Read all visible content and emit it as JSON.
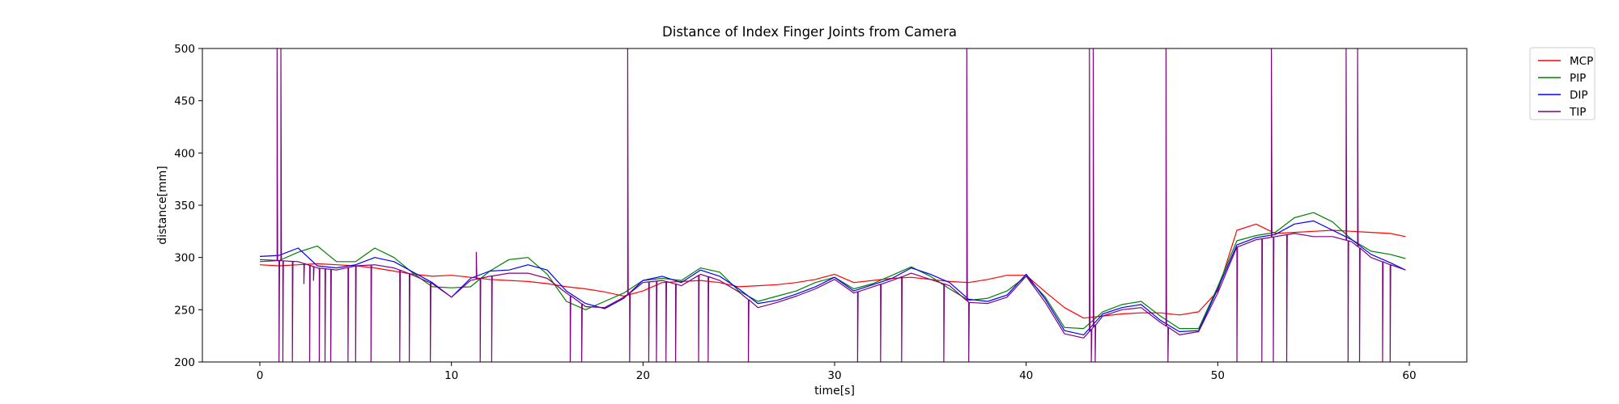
{
  "chart_data": {
    "type": "line",
    "title": "Distance of Index Finger Joints from Camera",
    "xlabel": "time[s]",
    "ylabel": "distance[mm]",
    "xlim": [
      -3,
      63
    ],
    "ylim": [
      200,
      500
    ],
    "xticks": [
      0,
      10,
      20,
      30,
      40,
      50,
      60
    ],
    "yticks": [
      200,
      250,
      300,
      350,
      400,
      450,
      500
    ],
    "grid": false,
    "legend_position": "outside-top-right",
    "series": [
      {
        "name": "MCP",
        "color": "#ff0000",
        "x": [
          0,
          1,
          2,
          3,
          4,
          5,
          6,
          7,
          8,
          9,
          10,
          11,
          12,
          13,
          14,
          15,
          16,
          17,
          18,
          19,
          20,
          21,
          22,
          23,
          24,
          25,
          26,
          27,
          28,
          29,
          30,
          31,
          32,
          33,
          34,
          35,
          36,
          37,
          38,
          39,
          40,
          41,
          42,
          43,
          44,
          45,
          46,
          47,
          48,
          49,
          50,
          51,
          52,
          53,
          54,
          55,
          56,
          57,
          58,
          59,
          59.8
        ],
        "y": [
          293,
          292,
          293,
          294,
          293,
          292,
          290,
          287,
          284,
          282,
          283,
          281,
          279,
          278,
          277,
          275,
          272,
          270,
          267,
          263,
          268,
          276,
          277,
          278,
          276,
          272,
          273,
          274,
          276,
          279,
          284,
          276,
          278,
          280,
          281,
          279,
          277,
          276,
          279,
          283,
          283,
          267,
          252,
          242,
          244,
          246,
          247,
          247,
          245,
          248,
          268,
          326,
          332,
          323,
          324,
          325,
          326,
          325,
          324,
          323,
          320
        ]
      },
      {
        "name": "PIP",
        "color": "#008000",
        "x": [
          0,
          1,
          2,
          3,
          4,
          5,
          6,
          7,
          8,
          9,
          10,
          11,
          12,
          13,
          14,
          15,
          16,
          17,
          18,
          19,
          20,
          21,
          22,
          23,
          24,
          25,
          26,
          27,
          28,
          29,
          30,
          31,
          32,
          33,
          34,
          35,
          36,
          37,
          38,
          39,
          40,
          41,
          42,
          43,
          44,
          45,
          46,
          47,
          48,
          49,
          50,
          51,
          52,
          53,
          54,
          55,
          56,
          57,
          58,
          59,
          59.8
        ],
        "y": [
          296,
          297,
          305,
          311,
          296,
          296,
          309,
          300,
          285,
          272,
          271,
          272,
          287,
          298,
          300,
          284,
          258,
          250,
          258,
          266,
          278,
          280,
          278,
          290,
          286,
          268,
          258,
          263,
          268,
          276,
          281,
          270,
          275,
          283,
          291,
          282,
          270,
          259,
          261,
          268,
          282,
          262,
          233,
          232,
          248,
          255,
          258,
          244,
          232,
          232,
          272,
          316,
          321,
          324,
          338,
          343,
          334,
          317,
          306,
          303,
          299
        ]
      },
      {
        "name": "DIP",
        "color": "#0000ff",
        "x": [
          0,
          1,
          2,
          3,
          4,
          5,
          6,
          7,
          8,
          9,
          10,
          11,
          12,
          13,
          14,
          15,
          16,
          17,
          18,
          19,
          20,
          21,
          22,
          23,
          24,
          25,
          26,
          27,
          28,
          29,
          30,
          31,
          32,
          33,
          34,
          35,
          36,
          37,
          38,
          39,
          40,
          41,
          42,
          43,
          44,
          45,
          46,
          47,
          48,
          49,
          50,
          51,
          52,
          53,
          54,
          55,
          56,
          57,
          58,
          59,
          59.8
        ],
        "y": [
          301,
          302,
          309,
          292,
          290,
          293,
          300,
          296,
          286,
          276,
          262,
          280,
          287,
          288,
          293,
          288,
          268,
          256,
          251,
          261,
          278,
          282,
          276,
          288,
          282,
          270,
          256,
          259,
          265,
          272,
          281,
          268,
          274,
          280,
          290,
          284,
          276,
          260,
          258,
          264,
          284,
          260,
          230,
          226,
          246,
          252,
          255,
          240,
          229,
          230,
          270,
          312,
          319,
          322,
          332,
          335,
          326,
          317,
          303,
          295,
          288
        ]
      },
      {
        "name": "TIP",
        "color": "#800080",
        "x": [
          0,
          1,
          2,
          3,
          4,
          5,
          6,
          7,
          8,
          9,
          10,
          11,
          12,
          13,
          14,
          15,
          16,
          17,
          18,
          19,
          20,
          21,
          22,
          23,
          24,
          25,
          26,
          27,
          28,
          29,
          30,
          31,
          32,
          33,
          34,
          35,
          36,
          37,
          38,
          39,
          40,
          41,
          42,
          43,
          44,
          45,
          46,
          47,
          48,
          49,
          50,
          51,
          52,
          53,
          54,
          55,
          56,
          57,
          58,
          59,
          59.8
        ],
        "y": [
          298,
          297,
          296,
          290,
          288,
          292,
          293,
          290,
          283,
          275,
          262,
          278,
          282,
          285,
          285,
          280,
          266,
          253,
          252,
          262,
          276,
          278,
          273,
          284,
          278,
          267,
          252,
          257,
          263,
          270,
          279,
          266,
          272,
          278,
          285,
          279,
          273,
          257,
          256,
          262,
          282,
          257,
          227,
          223,
          244,
          250,
          252,
          238,
          226,
          229,
          266,
          310,
          317,
          320,
          323,
          320,
          320,
          315,
          300,
          293,
          288
        ]
      }
    ],
    "tip_spikes": [
      {
        "x": 0.9,
        "y": 500
      },
      {
        "x": 1.0,
        "y": 200
      },
      {
        "x": 1.1,
        "y": 500
      },
      {
        "x": 1.2,
        "y": 200
      },
      {
        "x": 1.7,
        "y": 200
      },
      {
        "x": 2.3,
        "y": 275
      },
      {
        "x": 2.6,
        "y": 200
      },
      {
        "x": 2.8,
        "y": 278
      },
      {
        "x": 3.1,
        "y": 200
      },
      {
        "x": 3.4,
        "y": 200
      },
      {
        "x": 3.7,
        "y": 200
      },
      {
        "x": 4.6,
        "y": 200
      },
      {
        "x": 5.0,
        "y": 200
      },
      {
        "x": 5.8,
        "y": 200
      },
      {
        "x": 7.3,
        "y": 200
      },
      {
        "x": 7.8,
        "y": 200
      },
      {
        "x": 8.9,
        "y": 200
      },
      {
        "x": 11.3,
        "y": 305
      },
      {
        "x": 11.5,
        "y": 200
      },
      {
        "x": 12.1,
        "y": 200
      },
      {
        "x": 16.2,
        "y": 200
      },
      {
        "x": 16.8,
        "y": 200
      },
      {
        "x": 19.2,
        "y": 500
      },
      {
        "x": 19.3,
        "y": 200
      },
      {
        "x": 20.3,
        "y": 200
      },
      {
        "x": 20.7,
        "y": 200
      },
      {
        "x": 21.2,
        "y": 200
      },
      {
        "x": 21.7,
        "y": 200
      },
      {
        "x": 22.9,
        "y": 200
      },
      {
        "x": 23.4,
        "y": 200
      },
      {
        "x": 25.5,
        "y": 200
      },
      {
        "x": 31.2,
        "y": 200
      },
      {
        "x": 32.4,
        "y": 200
      },
      {
        "x": 33.5,
        "y": 200
      },
      {
        "x": 35.7,
        "y": 200
      },
      {
        "x": 36.9,
        "y": 500
      },
      {
        "x": 37.0,
        "y": 200
      },
      {
        "x": 43.3,
        "y": 500
      },
      {
        "x": 43.4,
        "y": 200
      },
      {
        "x": 43.5,
        "y": 500
      },
      {
        "x": 43.6,
        "y": 200
      },
      {
        "x": 47.3,
        "y": 500
      },
      {
        "x": 47.4,
        "y": 200
      },
      {
        "x": 51.0,
        "y": 200
      },
      {
        "x": 52.3,
        "y": 200
      },
      {
        "x": 52.8,
        "y": 500
      },
      {
        "x": 52.9,
        "y": 200
      },
      {
        "x": 53.6,
        "y": 200
      },
      {
        "x": 56.7,
        "y": 500
      },
      {
        "x": 56.8,
        "y": 200
      },
      {
        "x": 57.3,
        "y": 500
      },
      {
        "x": 57.4,
        "y": 200
      },
      {
        "x": 58.6,
        "y": 200
      },
      {
        "x": 59.0,
        "y": 200
      }
    ]
  }
}
